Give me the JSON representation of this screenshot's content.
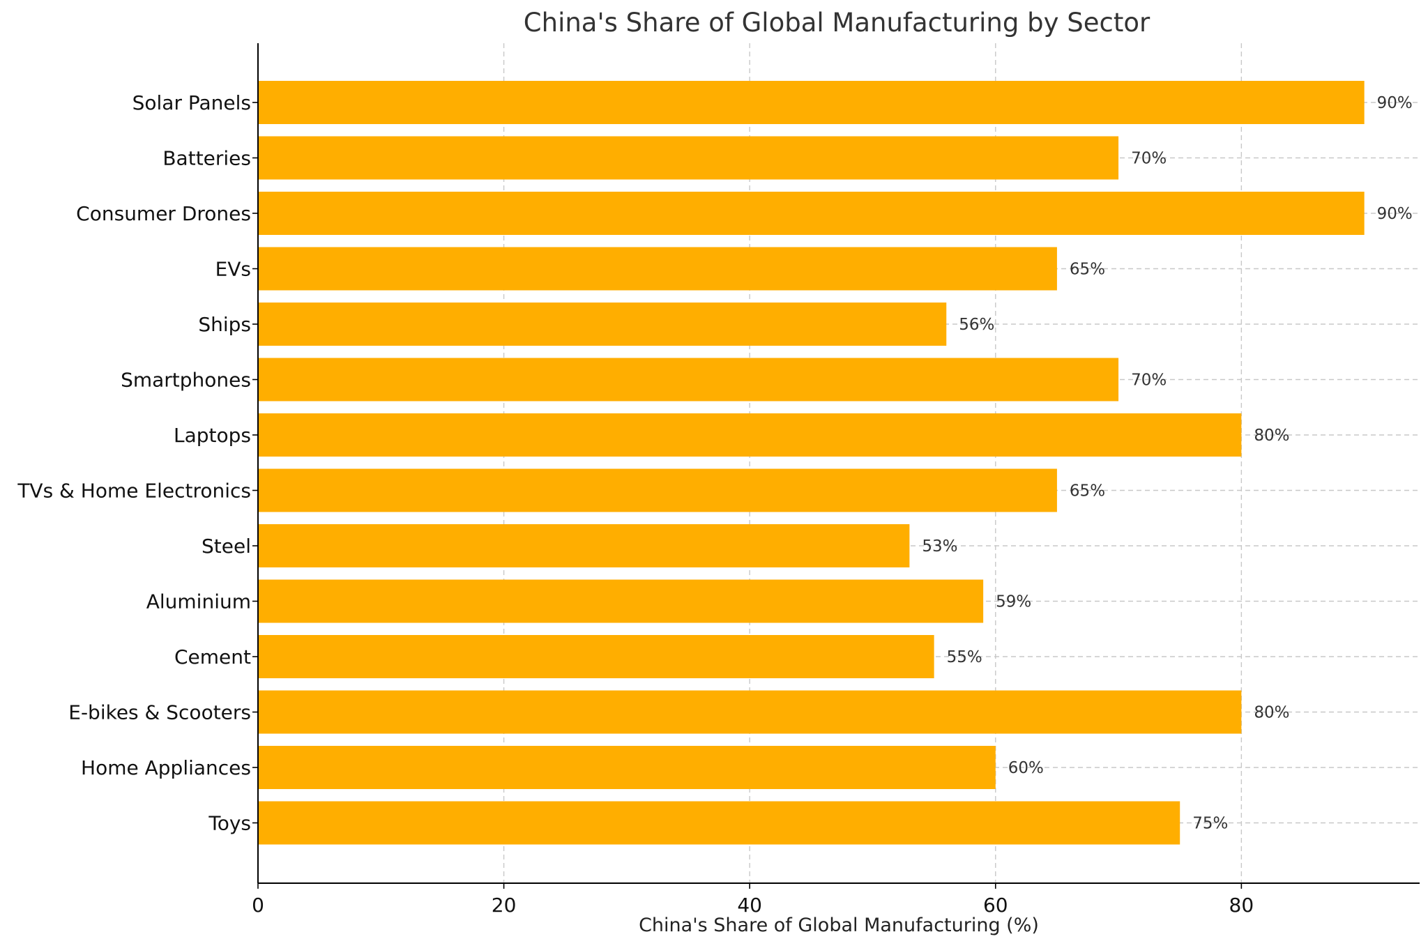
{
  "chart_data": {
    "type": "bar",
    "orientation": "horizontal",
    "title": "China's Share of Global Manufacturing by Sector",
    "xlabel": "China's Share of Global Manufacturing (%)",
    "ylabel": "",
    "categories": [
      "Solar Panels",
      "Batteries",
      "Consumer Drones",
      "EVs",
      "Ships",
      "Smartphones",
      "Laptops",
      "TVs & Home Electronics",
      "Steel",
      "Aluminium",
      "Cement",
      "E-bikes & Scooters",
      "Home Appliances",
      "Toys"
    ],
    "values": [
      90,
      70,
      90,
      65,
      56,
      70,
      80,
      65,
      53,
      59,
      55,
      80,
      60,
      75
    ],
    "data_labels": [
      "90%",
      "70%",
      "90%",
      "65%",
      "56%",
      "70%",
      "80%",
      "65%",
      "53%",
      "59%",
      "55%",
      "80%",
      "60%",
      "75%"
    ],
    "xticks": [
      0,
      20,
      40,
      60,
      80
    ],
    "xlim": [
      0,
      94.5
    ],
    "grid": true,
    "bar_color": "#FFAE00"
  }
}
